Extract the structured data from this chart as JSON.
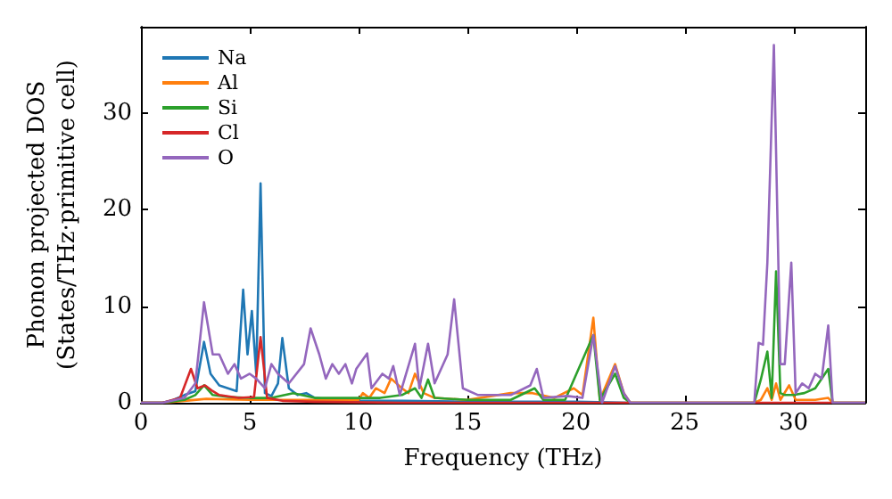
{
  "chart_data": {
    "type": "line",
    "xlabel": "Frequency (THz)",
    "ylabel": "Phonon projected DOS\n(States/THz·primitive cell)",
    "xlim": [
      0,
      33.3
    ],
    "xticks": [
      0,
      5,
      10,
      15,
      20,
      25,
      30
    ],
    "ylim": [
      0,
      38.9
    ],
    "yticks": [
      0,
      10,
      20,
      30
    ],
    "grid": false,
    "legend": "top left",
    "series": [
      {
        "name": "Na",
        "color": "#1f77b4",
        "x": [
          0,
          1,
          1.5,
          2,
          2.5,
          2.9,
          3.2,
          3.6,
          4.0,
          4.4,
          4.7,
          4.9,
          5.1,
          5.3,
          5.5,
          5.7,
          6.0,
          6.3,
          6.5,
          6.8,
          7.2,
          7.6,
          8,
          9,
          10,
          12,
          16,
          20,
          22.5
        ],
        "values": [
          0,
          0,
          0.3,
          0.8,
          1.2,
          6.3,
          3,
          1.8,
          1.5,
          1.2,
          11.7,
          5,
          9.5,
          3,
          22.7,
          1,
          0.7,
          2,
          6.7,
          1.5,
          0.8,
          1,
          0.5,
          0.3,
          0.2,
          0.2,
          0.1,
          0.1,
          0
        ]
      },
      {
        "name": "Al",
        "color": "#ff7f0e",
        "x": [
          0,
          1,
          2,
          3,
          5,
          8,
          10,
          10.2,
          10.5,
          10.8,
          11.2,
          11.5,
          12.0,
          12.3,
          12.6,
          13.0,
          13.5,
          15,
          17,
          18,
          19,
          19.9,
          20.3,
          20.8,
          21.1,
          21.8,
          22.2,
          22.5,
          28.2,
          28.5,
          28.8,
          29.0,
          29.2,
          29.4,
          29.8,
          30.1,
          31.0,
          31.6,
          31.8,
          33.3
        ],
        "values": [
          0,
          0,
          0.2,
          0.4,
          0.3,
          0.3,
          0.3,
          1,
          0.5,
          1.5,
          1,
          2.5,
          1.5,
          1,
          3,
          1,
          0.5,
          0.3,
          1,
          1,
          0.5,
          1.5,
          0.8,
          8.8,
          0.3,
          4,
          1,
          0,
          0,
          0.3,
          1.5,
          0.3,
          2,
          0.3,
          1.8,
          0.3,
          0.3,
          0.5,
          0,
          0
        ]
      },
      {
        "name": "Si",
        "color": "#2ca02c",
        "x": [
          0,
          1,
          2,
          2.5,
          2.9,
          3.3,
          4,
          5,
          6,
          7,
          8,
          9,
          10,
          11,
          12,
          12.6,
          12.9,
          13.2,
          13.5,
          15,
          17,
          18.1,
          18.5,
          19.5,
          20.8,
          21.1,
          21.8,
          22.2,
          22.5,
          28.2,
          28.5,
          28.8,
          29.0,
          29.2,
          29.4,
          29.6,
          30.0,
          30.5,
          31.0,
          31.6,
          31.8,
          33.3
        ],
        "values": [
          0,
          0,
          0.3,
          0.8,
          1.8,
          0.8,
          0.6,
          0.5,
          0.5,
          1,
          0.5,
          0.5,
          0.5,
          0.5,
          0.8,
          1.5,
          0.5,
          2.4,
          0.5,
          0.3,
          0.3,
          1.5,
          0.3,
          0.3,
          7,
          0.3,
          3,
          0.5,
          0,
          0,
          2.4,
          5.3,
          0.5,
          13.6,
          1,
          0.8,
          0.8,
          1,
          1.5,
          3.5,
          0,
          0
        ]
      },
      {
        "name": "Cl",
        "color": "#d62728",
        "x": [
          0,
          1,
          1.8,
          2.3,
          2.6,
          2.95,
          3.3,
          3.6,
          4.5,
          5.2,
          5.5,
          5.8,
          6.5,
          8,
          12,
          22.5,
          33.3
        ],
        "values": [
          0,
          0,
          0.5,
          3.5,
          1.5,
          1.8,
          1.2,
          0.8,
          0.5,
          0.6,
          6.8,
          0.5,
          0.2,
          0.1,
          0,
          0,
          0
        ]
      },
      {
        "name": "O",
        "color": "#9467bd",
        "x": [
          0,
          1,
          2,
          2.5,
          2.9,
          3.3,
          3.6,
          4.0,
          4.3,
          4.6,
          5.0,
          5.3,
          5.7,
          6.0,
          6.3,
          6.8,
          7.5,
          7.8,
          8.2,
          8.5,
          8.8,
          9.1,
          9.4,
          9.7,
          9.9,
          10.4,
          10.6,
          11.1,
          11.4,
          11.6,
          11.9,
          12.6,
          12.8,
          13.2,
          13.5,
          14.1,
          14.4,
          14.8,
          15.5,
          17,
          17.9,
          18.2,
          18.5,
          19.6,
          20.3,
          20.8,
          21.2,
          21.8,
          22.2,
          22.5,
          28.2,
          28.4,
          28.6,
          28.8,
          29.1,
          29.4,
          29.6,
          29.9,
          30.1,
          30.4,
          30.7,
          31.0,
          31.3,
          31.6,
          31.8,
          33.3
        ],
        "values": [
          0,
          0,
          0.5,
          2,
          10.4,
          5,
          5,
          3,
          4,
          2.5,
          3,
          2.5,
          1.5,
          4,
          3,
          2,
          4,
          7.7,
          5,
          2.5,
          4,
          3,
          4,
          2,
          3.5,
          5.1,
          1.5,
          3,
          2.5,
          3.8,
          0.8,
          6.1,
          1.5,
          6.1,
          2,
          5,
          10.7,
          1.5,
          0.8,
          0.8,
          1.8,
          3.5,
          0.5,
          0.7,
          0.5,
          7,
          0,
          3.8,
          1,
          0,
          0,
          6.2,
          6,
          14.5,
          37,
          4,
          4,
          14.5,
          1,
          2,
          1.5,
          3,
          2.5,
          8,
          0,
          0
        ]
      }
    ]
  }
}
